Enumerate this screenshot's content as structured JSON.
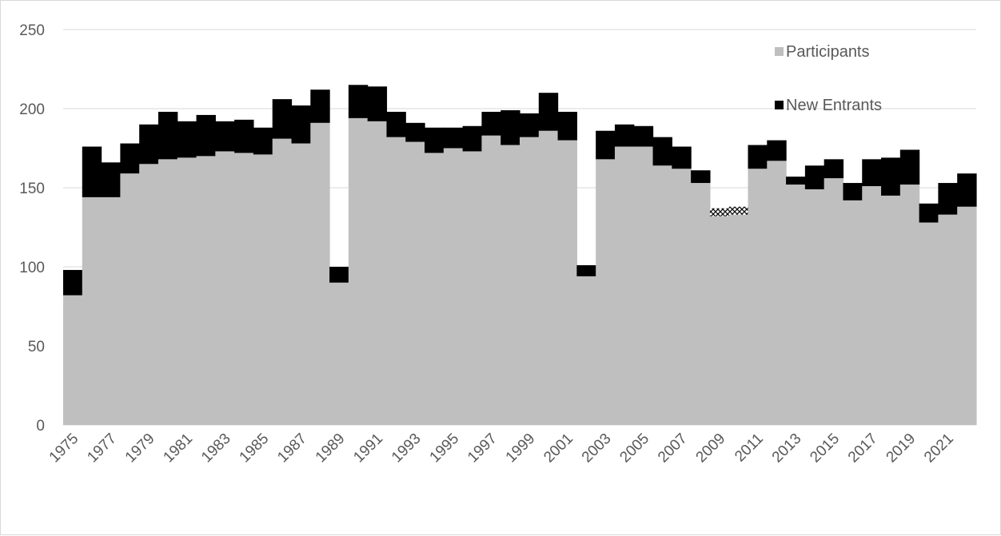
{
  "chart_data": {
    "type": "bar",
    "stacked": true,
    "x": [
      1975,
      1976,
      1977,
      1978,
      1979,
      1980,
      1981,
      1982,
      1983,
      1984,
      1985,
      1986,
      1987,
      1988,
      1989,
      1990,
      1991,
      1992,
      1993,
      1994,
      1995,
      1996,
      1997,
      1998,
      1999,
      2000,
      2001,
      2002,
      2003,
      2004,
      2005,
      2006,
      2007,
      2008,
      2009,
      2010,
      2011,
      2012,
      2013,
      2014,
      2015,
      2016,
      2017,
      2018,
      2019,
      2020,
      2021,
      2022
    ],
    "x_tick_labels": [
      "1975",
      "1977",
      "1979",
      "1981",
      "1983",
      "1985",
      "1987",
      "1989",
      "1991",
      "1993",
      "1995",
      "1997",
      "1999",
      "2001",
      "2003",
      "2005",
      "2007",
      "2009",
      "2011",
      "2013",
      "2015",
      "2017",
      "2019",
      "2021"
    ],
    "series": [
      {
        "name": "Participants",
        "color": "#bfbfbf",
        "values": [
          82,
          144,
          144,
          159,
          165,
          168,
          169,
          170,
          173,
          172,
          171,
          181,
          178,
          191,
          90,
          194,
          192,
          182,
          179,
          172,
          175,
          173,
          183,
          177,
          182,
          186,
          180,
          94,
          168,
          176,
          176,
          164,
          162,
          153,
          132,
          133,
          162,
          167,
          152,
          149,
          156,
          142,
          151,
          145,
          152,
          128,
          133,
          138
        ]
      },
      {
        "name": "New Entrants",
        "color": "#000000",
        "values": [
          16,
          32,
          22,
          19,
          25,
          30,
          23,
          26,
          19,
          21,
          17,
          25,
          24,
          21,
          10,
          21,
          22,
          16,
          12,
          16,
          13,
          16,
          15,
          22,
          15,
          24,
          18,
          7,
          18,
          14,
          13,
          18,
          14,
          8,
          5,
          5,
          15,
          13,
          5,
          15,
          12,
          11,
          17,
          24,
          22,
          12,
          20,
          21
        ]
      }
    ],
    "hatched_years": [
      2009,
      2010
    ],
    "ylim": [
      0,
      250
    ],
    "yticks": [
      0,
      50,
      100,
      150,
      200,
      250
    ],
    "grid": true,
    "legend_position": "top-right",
    "title": "",
    "xlabel": "",
    "ylabel": ""
  }
}
